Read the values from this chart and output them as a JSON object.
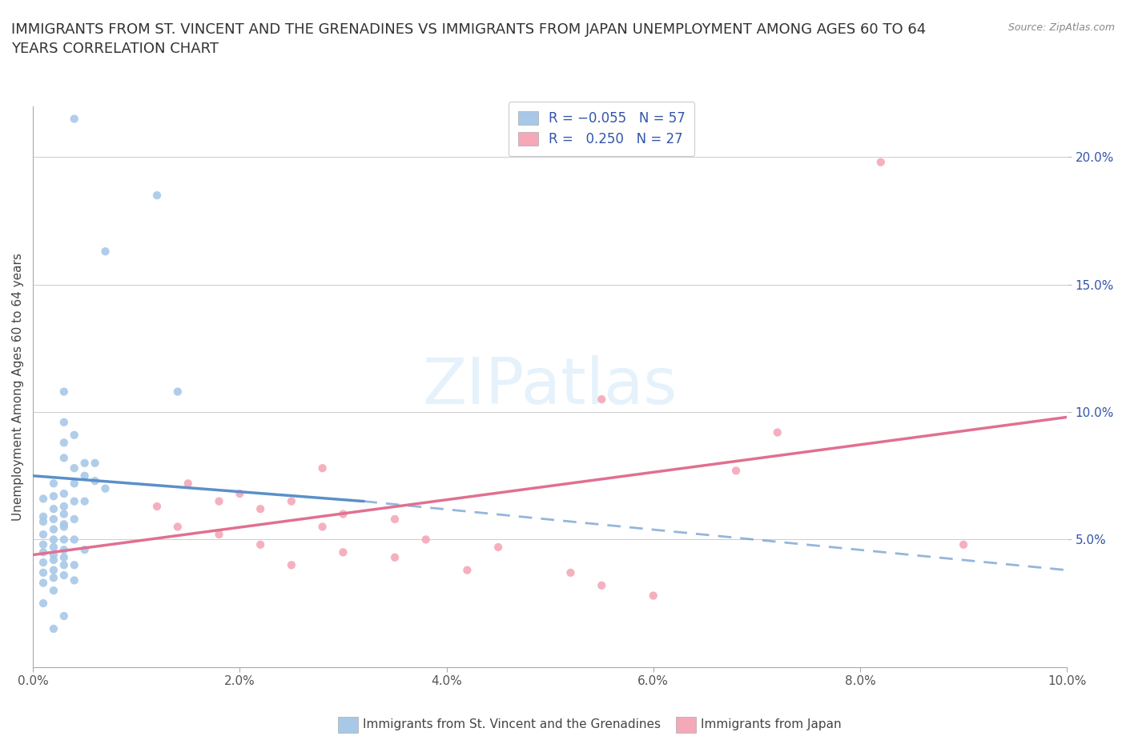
{
  "title": "IMMIGRANTS FROM ST. VINCENT AND THE GRENADINES VS IMMIGRANTS FROM JAPAN UNEMPLOYMENT AMONG AGES 60 TO 64\nYEARS CORRELATION CHART",
  "source": "Source: ZipAtlas.com",
  "xlabel_bottom_blue": "Immigrants from St. Vincent and the Grenadines",
  "xlabel_bottom_pink": "Immigrants from Japan",
  "ylabel": "Unemployment Among Ages 60 to 64 years",
  "xlim": [
    0.0,
    0.1
  ],
  "ylim": [
    0.0,
    0.22
  ],
  "xticks": [
    0.0,
    0.02,
    0.04,
    0.06,
    0.08,
    0.1
  ],
  "yticks": [
    0.05,
    0.1,
    0.15,
    0.2
  ],
  "ytick_labels": [
    "5.0%",
    "10.0%",
    "15.0%",
    "20.0%"
  ],
  "xtick_labels": [
    "0.0%",
    "2.0%",
    "4.0%",
    "6.0%",
    "8.0%",
    "10.0%"
  ],
  "color_blue": "#a8c8e8",
  "color_pink": "#f4a8b8",
  "line_color_blue": "#5b8fc9",
  "line_color_pink": "#e07090",
  "text_color_blue": "#3355aa",
  "watermark_color": "#d0e8f8",
  "blue_scatter": [
    [
      0.004,
      0.215
    ],
    [
      0.012,
      0.185
    ],
    [
      0.007,
      0.163
    ],
    [
      0.003,
      0.108
    ],
    [
      0.014,
      0.108
    ],
    [
      0.003,
      0.096
    ],
    [
      0.004,
      0.091
    ],
    [
      0.003,
      0.088
    ],
    [
      0.003,
      0.082
    ],
    [
      0.005,
      0.08
    ],
    [
      0.006,
      0.08
    ],
    [
      0.004,
      0.078
    ],
    [
      0.005,
      0.075
    ],
    [
      0.006,
      0.073
    ],
    [
      0.004,
      0.072
    ],
    [
      0.002,
      0.072
    ],
    [
      0.007,
      0.07
    ],
    [
      0.003,
      0.068
    ],
    [
      0.002,
      0.067
    ],
    [
      0.001,
      0.066
    ],
    [
      0.004,
      0.065
    ],
    [
      0.005,
      0.065
    ],
    [
      0.003,
      0.063
    ],
    [
      0.002,
      0.062
    ],
    [
      0.003,
      0.06
    ],
    [
      0.001,
      0.059
    ],
    [
      0.002,
      0.058
    ],
    [
      0.004,
      0.058
    ],
    [
      0.001,
      0.057
    ],
    [
      0.003,
      0.056
    ],
    [
      0.003,
      0.055
    ],
    [
      0.002,
      0.054
    ],
    [
      0.001,
      0.052
    ],
    [
      0.002,
      0.05
    ],
    [
      0.003,
      0.05
    ],
    [
      0.004,
      0.05
    ],
    [
      0.001,
      0.048
    ],
    [
      0.002,
      0.047
    ],
    [
      0.003,
      0.046
    ],
    [
      0.005,
      0.046
    ],
    [
      0.001,
      0.045
    ],
    [
      0.002,
      0.044
    ],
    [
      0.003,
      0.043
    ],
    [
      0.002,
      0.042
    ],
    [
      0.001,
      0.041
    ],
    [
      0.003,
      0.04
    ],
    [
      0.004,
      0.04
    ],
    [
      0.002,
      0.038
    ],
    [
      0.001,
      0.037
    ],
    [
      0.003,
      0.036
    ],
    [
      0.002,
      0.035
    ],
    [
      0.004,
      0.034
    ],
    [
      0.001,
      0.033
    ],
    [
      0.002,
      0.03
    ],
    [
      0.001,
      0.025
    ],
    [
      0.003,
      0.02
    ],
    [
      0.002,
      0.015
    ]
  ],
  "pink_scatter": [
    [
      0.082,
      0.198
    ],
    [
      0.055,
      0.105
    ],
    [
      0.072,
      0.092
    ],
    [
      0.028,
      0.078
    ],
    [
      0.068,
      0.077
    ],
    [
      0.015,
      0.072
    ],
    [
      0.02,
      0.068
    ],
    [
      0.018,
      0.065
    ],
    [
      0.025,
      0.065
    ],
    [
      0.012,
      0.063
    ],
    [
      0.022,
      0.062
    ],
    [
      0.03,
      0.06
    ],
    [
      0.035,
      0.058
    ],
    [
      0.014,
      0.055
    ],
    [
      0.028,
      0.055
    ],
    [
      0.018,
      0.052
    ],
    [
      0.038,
      0.05
    ],
    [
      0.022,
      0.048
    ],
    [
      0.045,
      0.047
    ],
    [
      0.03,
      0.045
    ],
    [
      0.035,
      0.043
    ],
    [
      0.025,
      0.04
    ],
    [
      0.042,
      0.038
    ],
    [
      0.052,
      0.037
    ],
    [
      0.055,
      0.032
    ],
    [
      0.06,
      0.028
    ],
    [
      0.09,
      0.048
    ]
  ],
  "blue_line_solid": [
    [
      0.0,
      0.075
    ],
    [
      0.032,
      0.065
    ]
  ],
  "blue_line_dashed": [
    [
      0.032,
      0.065
    ],
    [
      0.1,
      0.038
    ]
  ],
  "pink_line_solid": [
    [
      0.0,
      0.044
    ],
    [
      0.1,
      0.098
    ]
  ]
}
